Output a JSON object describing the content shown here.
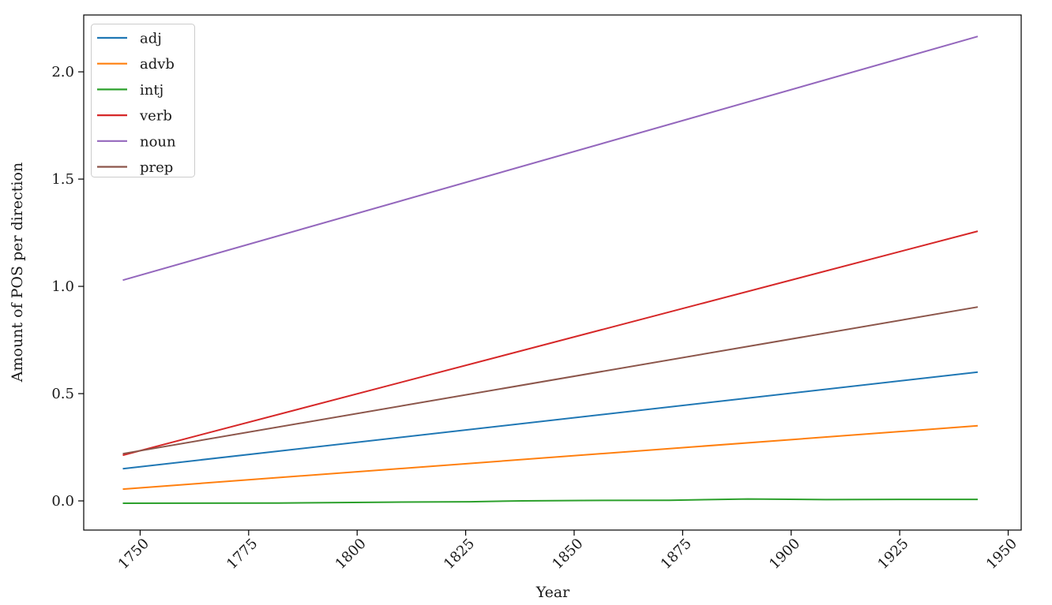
{
  "chart_data": {
    "type": "line",
    "title": "",
    "xlabel": "Year",
    "ylabel": "Amount of POS per direction",
    "xlim": [
      1737,
      1953
    ],
    "ylim": [
      -0.136,
      2.265
    ],
    "x_ticks": [
      1750,
      1775,
      1800,
      1825,
      1850,
      1875,
      1900,
      1925,
      1950
    ],
    "x_tick_labels": [
      "1750",
      "1775",
      "1800",
      "1825",
      "1850",
      "1875",
      "1900",
      "1925",
      "1950"
    ],
    "y_ticks": [
      0,
      0.5,
      1,
      1.5,
      2
    ],
    "y_tick_labels": [
      "0.0",
      "0.5",
      "1.0",
      "1.5",
      "2.0"
    ],
    "grid": false,
    "legend": {
      "position": "upper-left",
      "entries": [
        "adj",
        "advb",
        "intj",
        "verb",
        "noun",
        "prep"
      ]
    },
    "series": [
      {
        "name": "adj",
        "color": "#1f77b4",
        "points": [
          [
            1746,
            0.15
          ],
          [
            1943,
            0.6
          ]
        ]
      },
      {
        "name": "advb",
        "color": "#ff7f0e",
        "points": [
          [
            1746,
            0.055
          ],
          [
            1943,
            0.35
          ]
        ]
      },
      {
        "name": "intj",
        "color": "#2ca02c",
        "points": [
          [
            1746,
            -0.011
          ],
          [
            1782,
            -0.01
          ],
          [
            1808,
            -0.006
          ],
          [
            1826,
            -0.004
          ],
          [
            1838,
            0.0
          ],
          [
            1852,
            0.002
          ],
          [
            1872,
            0.003
          ],
          [
            1890,
            0.009
          ],
          [
            1908,
            0.006
          ],
          [
            1925,
            0.007
          ],
          [
            1943,
            0.007
          ]
        ]
      },
      {
        "name": "verb",
        "color": "#d62728",
        "points": [
          [
            1746,
            0.213
          ],
          [
            1943,
            1.257
          ]
        ]
      },
      {
        "name": "noun",
        "color": "#9467bd",
        "points": [
          [
            1746,
            1.029
          ],
          [
            1943,
            2.165
          ]
        ]
      },
      {
        "name": "prep",
        "color": "#8c564b",
        "points": [
          [
            1746,
            0.22
          ],
          [
            1943,
            0.904
          ]
        ]
      }
    ],
    "axis_color": "#000000",
    "legend_border_color": "#cccccc"
  }
}
